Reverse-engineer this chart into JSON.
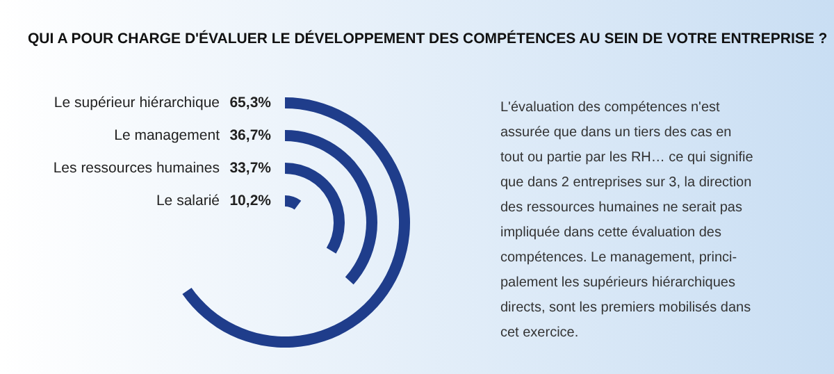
{
  "chart_data": {
    "type": "other",
    "title": "QUI A POUR CHARGE D'ÉVALUER LE DÉVELOPPEMENT DES COMPÉTENCES AU SEIN DE VOTRE ENTREPRISE ?",
    "categories": [
      "Le supérieur hiérarchique",
      "Le management",
      "Les ressources humaines",
      "Le salarié"
    ],
    "values": [
      65.3,
      36.7,
      33.7,
      10.2
    ],
    "value_labels": [
      "65,3%",
      "36,7%",
      "33,7%",
      "10,2%"
    ],
    "color": "#1f3d8b",
    "annotations": [
      "L'évaluation des compétences n'est\nassurée que dans un tiers des cas en\ntout ou partie par les RH… ce qui signifie\nque dans 2 entreprises sur 3, la direction\ndes ressources humaines ne serait pas\nimpliquée dans cette évaluation des\ncompétences. Le management, princi-\npalement les supérieurs hiérarchiques\ndirects, sont les premiers mobilisés dans\ncet exercice."
    ]
  }
}
